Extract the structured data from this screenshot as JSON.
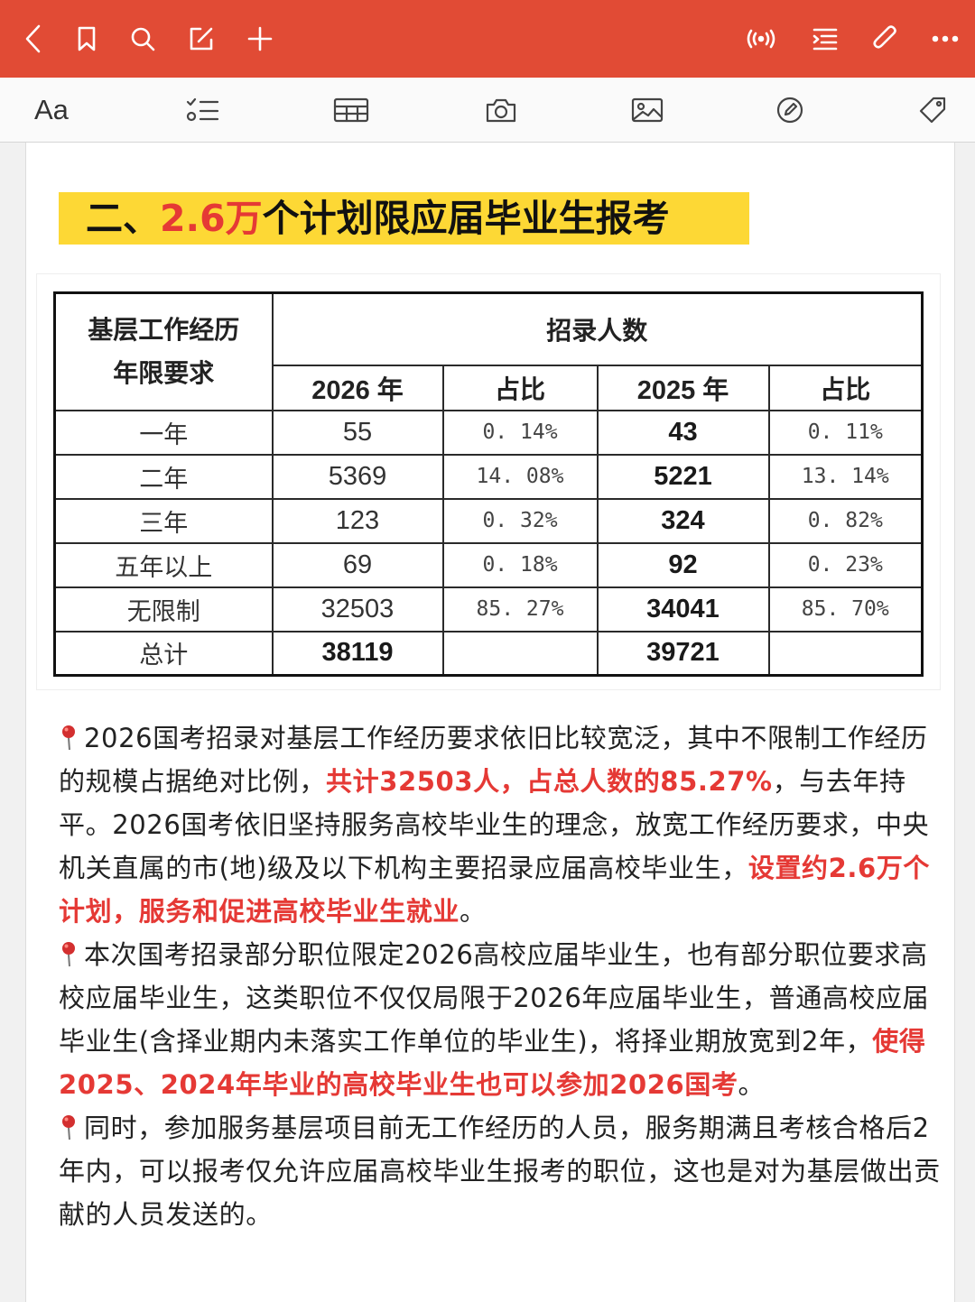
{
  "colors": {
    "topbar": "#e14b35",
    "heading_bg": "#fdd835",
    "highlight": "#e53935"
  },
  "topbar": {
    "left_icons": [
      "back-chevron-icon",
      "bookmark-icon",
      "search-icon",
      "edit-icon",
      "add-icon"
    ],
    "right_icons": [
      "broadcast-icon",
      "outline-icon",
      "attachment-icon",
      "more-icon"
    ]
  },
  "toolbar": {
    "font_label": "Aa",
    "icons": [
      "checklist-icon",
      "table-icon",
      "camera-icon",
      "image-icon",
      "draw-icon",
      "tag-icon"
    ]
  },
  "heading": {
    "prefix": "二、",
    "highlight": "2.6万",
    "suffix": "个计划限应届毕业生报考"
  },
  "table": {
    "row_header": "基层工作经历年限要求",
    "row_header_line1": "基层工作经历",
    "row_header_line2": "年限要求",
    "group_header": "招录人数",
    "columns": [
      "2026 年",
      "占比",
      "2025 年",
      "占比"
    ],
    "rows": [
      {
        "label": "一年",
        "v2026": "55",
        "p2026": "0. 14%",
        "v2025": "43",
        "p2025": "0. 11%"
      },
      {
        "label": "二年",
        "v2026": "5369",
        "p2026": "14. 08%",
        "v2025": "5221",
        "p2025": "13. 14%"
      },
      {
        "label": "三年",
        "v2026": "123",
        "p2026": "0. 32%",
        "v2025": "324",
        "p2025": "0. 82%"
      },
      {
        "label": "五年以上",
        "v2026": "69",
        "p2026": "0. 18%",
        "v2025": "92",
        "p2025": "0. 23%"
      },
      {
        "label": "无限制",
        "v2026": "32503",
        "p2026": "85. 27%",
        "v2025": "34041",
        "p2025": "85. 70%"
      },
      {
        "label": "总计",
        "v2026": "38119",
        "p2026": "",
        "v2025": "39721",
        "p2025": ""
      }
    ]
  },
  "paragraphs": [
    {
      "a": "2026国考招录对基层工作经历要求依旧比较宽泛，其中不限制工作经历的规模占据绝对比例，",
      "b": "共计32503人，占总人数的85.27%",
      "c": "，与去年持平。2026国考依旧坚持服务高校毕业生的理念，放宽工作经历要求，中央机关直属的市(地)级及以下机构主要招录应届高校毕业生，",
      "d": "设置约2.6万个计划，服务和促进高校毕业生就业",
      "e": "。"
    },
    {
      "a": "本次国考招录部分职位限定2026高校应届毕业生，也有部分职位要求高校应届毕业生，这类职位不仅仅局限于2026年应届毕业生，普通高校应届毕业生(含择业期内未落实工作单位的毕业生)，将择业期放宽到2年，",
      "b": "使得2025、2024年毕业的高校毕业生也可以参加2026国考",
      "c": "。"
    },
    {
      "a": "同时，参加服务基层项目前无工作经历的人员，服务期满且考核合格后2年内，可以报考仅允许应届高校毕业生报考的职位，这也是对为基层做出贡献的人员发送的。"
    }
  ]
}
